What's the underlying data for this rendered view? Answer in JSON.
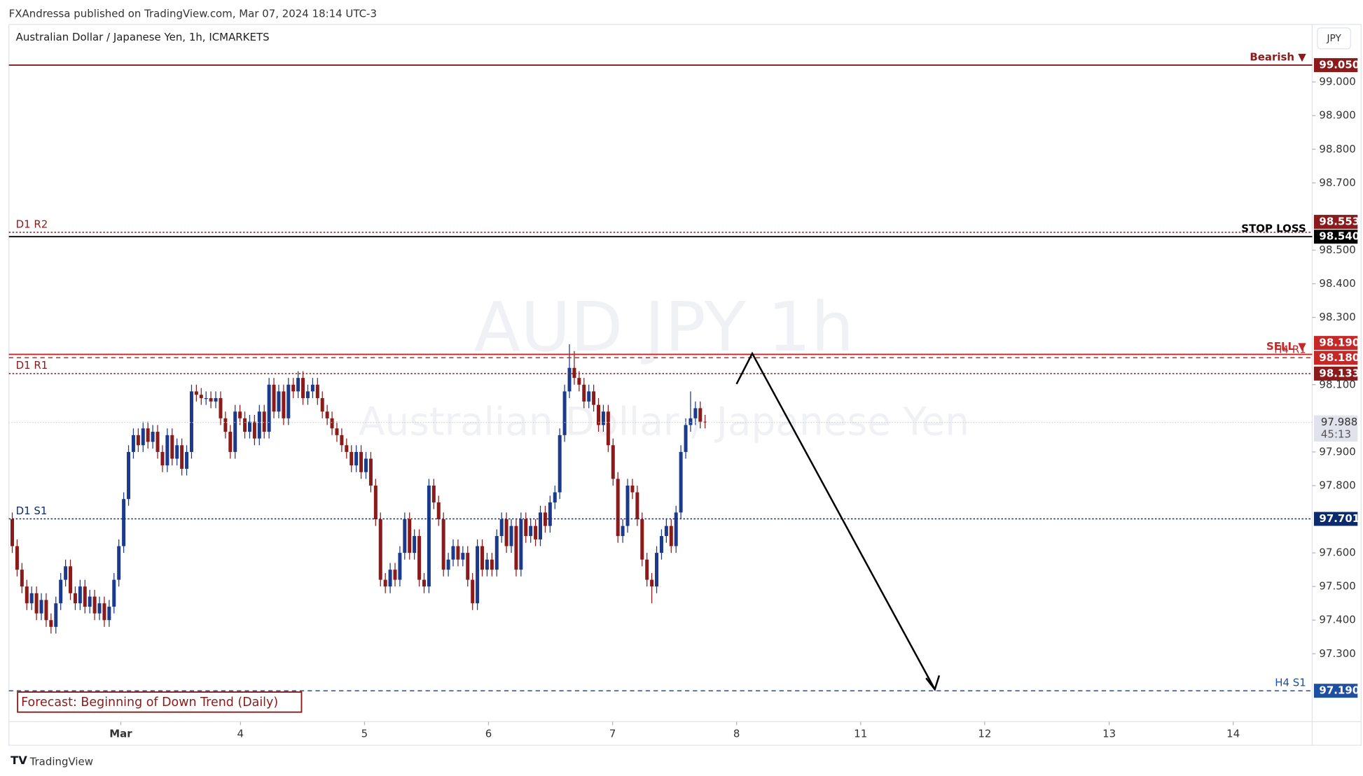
{
  "header": {
    "publisher": "FXAndressa published on TradingView.com, Mar 07, 2024 18:14 UTC-3",
    "symbol": "Australian Dollar / Japanese Yen, 1h, ICMARKETS",
    "currency": "JPY",
    "watermark": "AUD JPY  1h",
    "watermark_sub": "Australian Dollar / Japanese Yen"
  },
  "chart_data": {
    "type": "candlestick",
    "open": [
      97.7,
      97.62,
      97.55,
      97.5,
      97.45,
      97.48,
      97.42,
      97.46,
      97.4,
      97.38,
      97.45,
      97.52,
      97.56,
      97.48,
      97.45,
      97.5,
      97.44,
      97.47,
      97.42,
      97.45,
      97.4,
      97.44,
      97.52,
      97.62,
      97.76,
      97.9,
      97.95,
      97.92,
      97.97,
      97.93,
      97.96,
      97.9,
      97.86,
      97.95,
      97.88,
      97.92,
      97.85,
      97.9,
      98.08,
      98.07,
      98.06,
      98.06,
      98.05,
      98.06,
      98.0,
      97.96,
      97.9,
      98.02,
      98.0,
      97.96,
      97.99,
      97.94,
      98.02,
      97.96,
      98.1,
      98.02,
      98.08,
      98.0,
      98.1,
      98.08,
      98.12,
      98.06,
      98.08,
      98.1,
      98.06,
      98.02,
      98.0,
      97.97,
      97.95,
      97.92,
      97.9,
      97.86,
      97.9,
      97.84,
      97.88,
      97.8,
      97.7,
      97.52,
      97.5,
      97.55,
      97.52,
      97.6,
      97.7,
      97.6,
      97.65,
      97.52,
      97.5,
      97.8,
      97.75,
      97.7,
      97.55,
      97.58,
      97.62,
      97.58,
      97.6,
      97.52,
      97.45,
      97.62,
      97.55,
      97.58,
      97.55,
      97.65,
      97.7,
      97.62,
      97.68,
      97.55,
      97.7,
      97.65,
      97.68,
      97.64,
      97.72,
      97.68,
      97.75,
      97.78,
      97.95,
      98.08,
      98.15,
      98.12,
      98.1,
      98.05,
      98.08,
      98.04,
      97.98,
      98.02,
      97.92,
      97.82,
      97.65,
      97.68,
      97.8,
      97.78,
      97.7,
      97.58,
      97.52,
      97.5,
      97.6,
      97.65,
      97.68,
      97.62,
      97.72,
      97.9,
      97.98,
      98.0,
      98.03,
      97.99
    ],
    "high": [
      97.72,
      97.64,
      97.57,
      97.52,
      97.5,
      97.5,
      97.48,
      97.48,
      97.42,
      97.47,
      97.54,
      97.58,
      97.58,
      97.5,
      97.52,
      97.52,
      97.49,
      97.49,
      97.47,
      97.47,
      97.46,
      97.54,
      97.64,
      97.78,
      97.92,
      97.97,
      97.97,
      97.99,
      97.99,
      97.98,
      97.98,
      97.92,
      97.97,
      97.97,
      97.94,
      97.94,
      97.92,
      98.1,
      98.1,
      98.09,
      98.08,
      98.08,
      98.08,
      98.08,
      98.02,
      97.98,
      98.04,
      98.04,
      98.02,
      98.01,
      98.01,
      98.04,
      98.04,
      98.12,
      98.12,
      98.1,
      98.1,
      98.12,
      98.12,
      98.14,
      98.14,
      98.1,
      98.12,
      98.12,
      98.08,
      98.04,
      98.02,
      97.99,
      97.97,
      97.94,
      97.92,
      97.92,
      97.92,
      97.9,
      97.9,
      97.82,
      97.72,
      97.54,
      97.57,
      97.57,
      97.62,
      97.72,
      97.72,
      97.67,
      97.67,
      97.54,
      97.82,
      97.82,
      97.77,
      97.72,
      97.6,
      97.64,
      97.64,
      97.62,
      97.62,
      97.54,
      97.64,
      97.64,
      97.6,
      97.6,
      97.67,
      97.72,
      97.72,
      97.7,
      97.7,
      97.72,
      97.72,
      97.7,
      97.7,
      97.74,
      97.74,
      97.77,
      97.8,
      97.97,
      98.1,
      98.22,
      98.2,
      98.14,
      98.12,
      98.1,
      98.1,
      98.06,
      98.04,
      98.04,
      97.94,
      97.84,
      97.7,
      97.82,
      97.82,
      97.8,
      97.72,
      97.6,
      97.54,
      97.62,
      97.67,
      97.7,
      97.7,
      97.74,
      97.92,
      98.0,
      98.08,
      98.05,
      98.05,
      98.01
    ],
    "low": [
      97.6,
      97.53,
      97.48,
      97.43,
      97.43,
      97.4,
      97.4,
      97.38,
      97.36,
      97.36,
      97.43,
      97.5,
      97.46,
      97.43,
      97.43,
      97.42,
      97.42,
      97.4,
      97.4,
      97.38,
      97.38,
      97.42,
      97.5,
      97.6,
      97.74,
      97.88,
      97.9,
      97.9,
      97.91,
      97.91,
      97.88,
      97.84,
      97.84,
      97.86,
      97.86,
      97.83,
      97.83,
      97.88,
      98.05,
      98.04,
      98.04,
      98.03,
      98.03,
      97.98,
      97.94,
      97.88,
      97.88,
      97.98,
      97.94,
      97.94,
      97.92,
      97.92,
      97.94,
      97.94,
      98.0,
      98.0,
      97.98,
      97.98,
      98.06,
      98.06,
      98.04,
      98.04,
      98.06,
      98.04,
      98.0,
      97.98,
      97.95,
      97.93,
      97.9,
      97.88,
      97.84,
      97.84,
      97.82,
      97.82,
      97.78,
      97.68,
      97.5,
      97.48,
      97.48,
      97.5,
      97.5,
      97.58,
      97.58,
      97.58,
      97.5,
      97.48,
      97.48,
      97.73,
      97.68,
      97.53,
      97.53,
      97.56,
      97.56,
      97.56,
      97.5,
      97.43,
      97.43,
      97.53,
      97.53,
      97.53,
      97.53,
      97.63,
      97.6,
      97.6,
      97.53,
      97.53,
      97.63,
      97.63,
      97.62,
      97.62,
      97.66,
      97.66,
      97.73,
      97.76,
      97.93,
      98.06,
      98.1,
      98.08,
      98.03,
      98.03,
      98.02,
      97.96,
      97.96,
      97.9,
      97.8,
      97.63,
      97.63,
      97.66,
      97.76,
      97.68,
      97.56,
      97.5,
      97.45,
      97.48,
      97.58,
      97.63,
      97.6,
      97.6,
      97.7,
      97.88,
      97.96,
      97.98,
      97.97,
      97.97
    ],
    "close": [
      97.62,
      97.55,
      97.5,
      97.45,
      97.48,
      97.42,
      97.46,
      97.4,
      97.38,
      97.45,
      97.52,
      97.56,
      97.48,
      97.45,
      97.5,
      97.44,
      97.47,
      97.42,
      97.45,
      97.4,
      97.44,
      97.52,
      97.62,
      97.76,
      97.9,
      97.95,
      97.92,
      97.97,
      97.93,
      97.96,
      97.9,
      97.86,
      97.95,
      97.88,
      97.92,
      97.85,
      97.9,
      98.08,
      98.07,
      98.06,
      98.06,
      98.05,
      98.06,
      98.0,
      97.96,
      97.9,
      98.02,
      98.0,
      97.96,
      97.99,
      97.94,
      98.02,
      97.96,
      98.1,
      98.02,
      98.08,
      98.0,
      98.1,
      98.08,
      98.12,
      98.06,
      98.08,
      98.1,
      98.06,
      98.02,
      98.0,
      97.97,
      97.95,
      97.92,
      97.9,
      97.86,
      97.9,
      97.84,
      97.88,
      97.8,
      97.7,
      97.52,
      97.5,
      97.55,
      97.52,
      97.6,
      97.7,
      97.6,
      97.65,
      97.52,
      97.5,
      97.8,
      97.75,
      97.7,
      97.55,
      97.58,
      97.62,
      97.58,
      97.6,
      97.52,
      97.45,
      97.62,
      97.55,
      97.58,
      97.55,
      97.65,
      97.7,
      97.62,
      97.68,
      97.55,
      97.7,
      97.65,
      97.68,
      97.64,
      97.72,
      97.68,
      97.75,
      97.78,
      97.95,
      98.08,
      98.15,
      98.12,
      98.1,
      98.05,
      98.08,
      98.04,
      97.98,
      98.02,
      97.92,
      97.82,
      97.65,
      97.68,
      97.8,
      97.78,
      97.7,
      97.58,
      97.52,
      97.5,
      97.6,
      97.65,
      97.68,
      97.62,
      97.72,
      97.9,
      97.98,
      98.0,
      98.03,
      97.99,
      97.988
    ],
    "up_color": "#1b3a8c",
    "down_color": "#8b1a1a",
    "xlim": [
      -0.7,
      268.3
    ],
    "xticks": [
      {
        "value": 22.4,
        "label": "Mar"
      },
      {
        "value": 47.1,
        "label": "4"
      },
      {
        "value": 72.7,
        "label": "5"
      },
      {
        "value": 98.3,
        "label": "6"
      },
      {
        "value": 123.9,
        "label": "7"
      },
      {
        "value": 149.5,
        "label": "8"
      },
      {
        "value": 175.1,
        "label": "11"
      },
      {
        "value": 200.7,
        "label": "12"
      },
      {
        "value": 226.4,
        "label": "13"
      },
      {
        "value": 252.0,
        "label": "14"
      }
    ],
    "ylim": [
      97.098,
      99.171
    ],
    "yticks": [
      {
        "value": 97.3,
        "label": "97.300"
      },
      {
        "value": 97.4,
        "label": "97.400"
      },
      {
        "value": 97.5,
        "label": "97.500"
      },
      {
        "value": 97.6,
        "label": "97.600"
      },
      {
        "value": 97.8,
        "label": "97.800"
      },
      {
        "value": 97.9,
        "label": "97.900"
      },
      {
        "value": 98.1,
        "label": "98.100"
      },
      {
        "value": 98.3,
        "label": "98.300"
      },
      {
        "value": 98.4,
        "label": "98.400"
      },
      {
        "value": 98.5,
        "label": "98.500"
      },
      {
        "value": 98.7,
        "label": "98.700"
      },
      {
        "value": 98.8,
        "label": "98.800"
      },
      {
        "value": 98.9,
        "label": "98.900"
      },
      {
        "value": 99.0,
        "label": "99.000"
      }
    ],
    "levels": [
      {
        "value": 99.05,
        "tag": "99.050",
        "name": "Bearish ▼",
        "color": "#8b1a1a",
        "style": "solid",
        "label_side": "right"
      },
      {
        "value": 98.553,
        "tag": "98.553",
        "name": "D1 R2",
        "color": "#8b1a1a",
        "style": "dotted",
        "label_side": "left"
      },
      {
        "value": 98.54,
        "tag": "98.540",
        "name": "STOP LOSS",
        "color": "#000000",
        "style": "solid",
        "label_side": "right"
      },
      {
        "value": 98.19,
        "tag": "98.190",
        "name": "SELL ▼",
        "color": "#c62828",
        "style": "solid",
        "label_side": "right"
      },
      {
        "value": 98.18,
        "tag": "98.180",
        "name": "H4 R1",
        "color": "#c62828",
        "style": "dashed",
        "label_side": "right"
      },
      {
        "value": 98.133,
        "tag": "98.133",
        "name": "D1 R1",
        "color": "#8b1a1a",
        "style": "dotted",
        "label_side": "left"
      },
      {
        "value": 97.701,
        "tag": "97.701",
        "name": "D1 S1",
        "color": "#0d2a6b",
        "style": "dotted",
        "label_side": "left"
      },
      {
        "value": 97.19,
        "tag": "97.190",
        "name": "H4 S1",
        "color": "#1e4fa0",
        "style": "dashed",
        "label_side": "right"
      }
    ],
    "last_price": {
      "value": 97.988,
      "tag": "97.988",
      "countdown": "45:13"
    },
    "annotation": "Forecast: Beginning of Down Trend (Daily)"
  },
  "footer": {
    "brand": "TradingView"
  }
}
